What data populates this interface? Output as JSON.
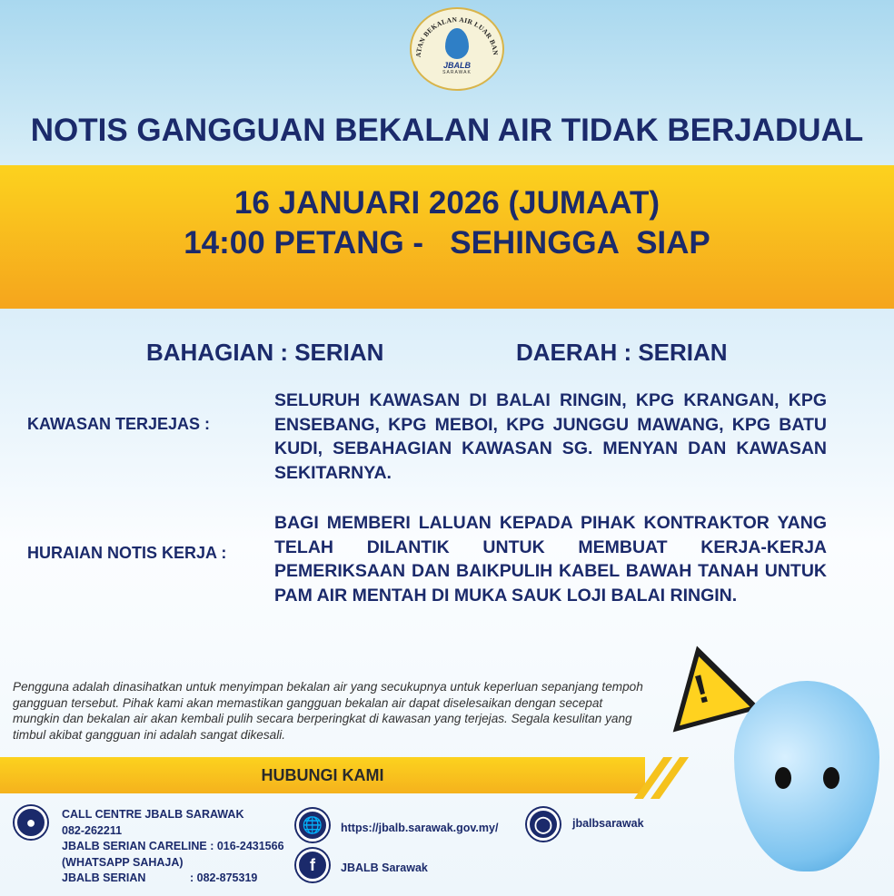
{
  "logo": {
    "ring_text": "JABATAN BEKALAN AIR LUAR BANDAR",
    "name": "JBALB",
    "region": "SARAWAK"
  },
  "title": "NOTIS GANGGUAN BEKALAN AIR TIDAK BERJADUAL",
  "date_line": "16 JANUARI 2026 (JUMAAT)",
  "time_line": "14:00 PETANG -   SEHINGGA  SIAP",
  "bahagian": "BAHAGIAN : SERIAN",
  "daerah": "DAERAH : SERIAN",
  "kawasan": {
    "label": "KAWASAN TERJEJAS  :",
    "value": "SELURUH KAWASAN DI BALAI RINGIN, KPG KRANGAN, KPG ENSEBANG, KPG MEBOI, KPG JUNGGU MAWANG, KPG BATU KUDI, SEBAHAGIAN KAWASAN SG. MENYAN DAN KAWASAN SEKITARNYA."
  },
  "huraian": {
    "label": "HURAIAN NOTIS KERJA :",
    "value": "BAGI MEMBERI LALUAN KEPADA PIHAK KONTRAKTOR YANG TELAH DILANTIK UNTUK MEMBUAT KERJA-KERJA PEMERIKSAAN DAN BAIKPULIH KABEL BAWAH TANAH UNTUK PAM AIR MENTAH DI MUKA SAUK LOJI BALAI RINGIN."
  },
  "note": "Pengguna adalah dinasihatkan untuk menyimpan bekalan air yang secukupnya untuk keperluan sepanjang tempoh gangguan tersebut. Pihak kami akan memastikan gangguan bekalan air dapat diselesaikan dengan secepat mungkin dan bekalan air akan kembali pulih secara berperingkat di kawasan yang terjejas. Segala kesulitan yang timbul akibat gangguan ini adalah sangat dikesali.",
  "contact": {
    "heading": "HUBUNGI KAMI",
    "phone": "CALL CENTRE JBALB SARAWAK\n082-262211\nJBALB SERIAN CARELINE : 016-2431566\n(WHATSAPP SAHAJA)\nJBALB SERIAN              : 082-875319",
    "website": "https://jbalb.sarawak.gov.my/",
    "facebook": "JBALB Sarawak",
    "instagram": "jbalbsarawak"
  },
  "colors": {
    "navy": "#1b2a6b",
    "yellow": "#fcd21e",
    "orange": "#f5a51d"
  }
}
